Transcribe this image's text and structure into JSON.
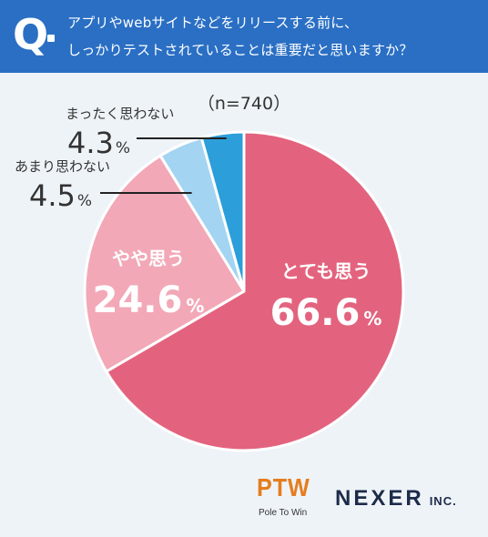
{
  "header": {
    "q_mark": "Q",
    "question_line1": "アプリやwebサイトなどをリリースする前に、",
    "question_line2": "しっかりテストされていることは重要だと思いますか？"
  },
  "chart_data": {
    "type": "pie",
    "sample_size_label": "（n=740）",
    "percent_suffix": "%",
    "slices": [
      {
        "label": "とても思う",
        "value": 66.6,
        "value_text": "66.6",
        "color": "#e3637e"
      },
      {
        "label": "やや思う",
        "value": 24.6,
        "value_text": "24.6",
        "color": "#f2a8b7"
      },
      {
        "label": "あまり思わない",
        "value": 4.5,
        "value_text": "4.5",
        "color": "#a3d4f2"
      },
      {
        "label": "まったく思わない",
        "value": 4.3,
        "value_text": "4.3",
        "color": "#2c9ed9"
      }
    ]
  },
  "logos": {
    "ptw_mark": "PTW",
    "ptw_sub": "Pole To Win",
    "nexer_main": "NEXER",
    "nexer_inc": "INC."
  }
}
